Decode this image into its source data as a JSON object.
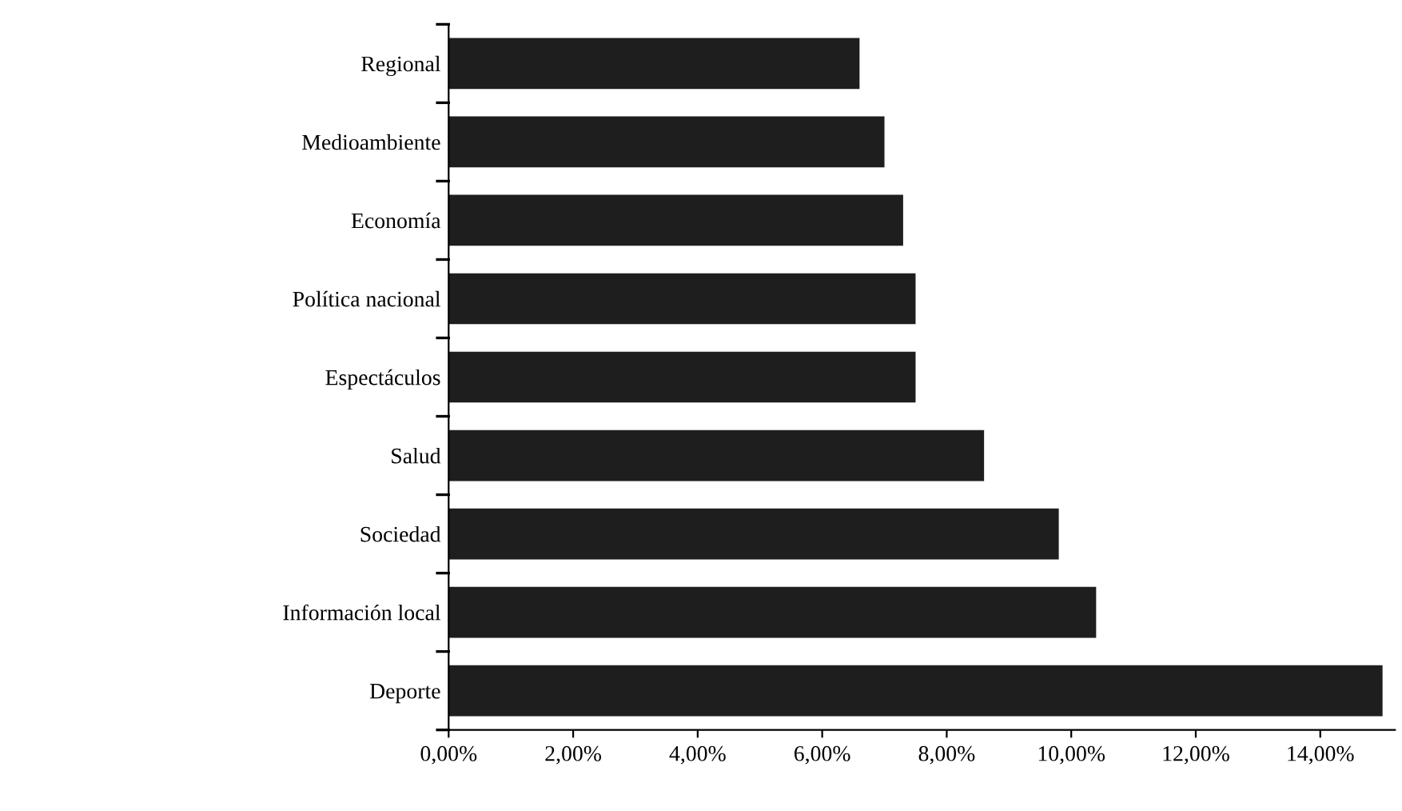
{
  "chart_data": {
    "type": "bar",
    "orientation": "horizontal",
    "categories": [
      "Regional",
      "Medioambiente",
      "Economía",
      "Política nacional",
      "Espectáculos",
      "Salud",
      "Sociedad",
      "Información local",
      "Deporte"
    ],
    "values": [
      6.6,
      7.0,
      7.3,
      7.5,
      7.5,
      8.6,
      9.8,
      10.4,
      15.0
    ],
    "color": "#1e1e1e",
    "xlim": [
      0,
      15.2
    ],
    "xticks": [
      {
        "value": 0,
        "label": "0,00%"
      },
      {
        "value": 2,
        "label": "2,00%"
      },
      {
        "value": 4,
        "label": "4,00%"
      },
      {
        "value": 6,
        "label": "6,00%"
      },
      {
        "value": 8,
        "label": "8,00%"
      },
      {
        "value": 10,
        "label": "10,00%"
      },
      {
        "value": 12,
        "label": "12,00%"
      },
      {
        "value": 14,
        "label": "14,00%"
      }
    ],
    "grid": false
  }
}
